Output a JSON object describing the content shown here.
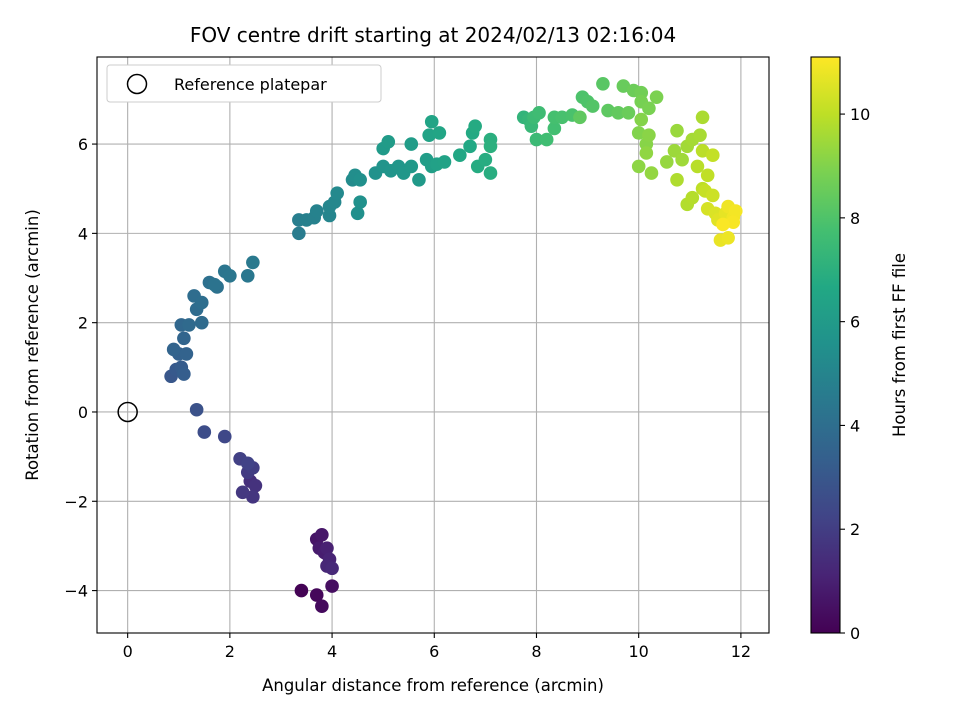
{
  "chart_data": {
    "type": "scatter",
    "title": "FOV centre drift starting at 2024/02/13 02:16:04",
    "xlabel": "Angular distance from reference (arcmin)",
    "ylabel": "Rotation from reference (arcmin)",
    "xlim": [
      -0.6,
      12.55
    ],
    "ylim": [
      -4.95,
      7.95
    ],
    "xticks": [
      0,
      2,
      4,
      6,
      8,
      10,
      12
    ],
    "yticks": [
      -4,
      -2,
      0,
      2,
      4,
      6
    ],
    "grid": true,
    "legend": {
      "position": "top-left",
      "entries": [
        {
          "label": "Reference platepar",
          "marker": "open-circle",
          "x": 0,
          "y": 0
        }
      ]
    },
    "colorbar": {
      "label": "Hours from first FF file",
      "colormap": "viridis",
      "range": [
        0,
        11.1
      ],
      "ticks": [
        0,
        2,
        4,
        6,
        8,
        10
      ]
    },
    "points": [
      [
        3.4,
        -4.0,
        0.05
      ],
      [
        3.7,
        -4.1,
        0.2
      ],
      [
        3.8,
        -4.35,
        0.3
      ],
      [
        4.0,
        -3.9,
        0.45
      ],
      [
        3.7,
        -2.85,
        0.6
      ],
      [
        3.8,
        -2.75,
        0.7
      ],
      [
        3.75,
        -3.05,
        0.8
      ],
      [
        3.85,
        -3.15,
        0.9
      ],
      [
        3.9,
        -3.05,
        1.0
      ],
      [
        3.95,
        -3.3,
        1.1
      ],
      [
        3.9,
        -3.45,
        1.2
      ],
      [
        4.0,
        -3.5,
        1.3
      ],
      [
        2.4,
        -1.55,
        1.5
      ],
      [
        2.5,
        -1.65,
        1.6
      ],
      [
        2.45,
        -1.9,
        1.7
      ],
      [
        2.25,
        -1.8,
        1.8
      ],
      [
        2.35,
        -1.35,
        1.9
      ],
      [
        2.45,
        -1.25,
        2.0
      ],
      [
        2.2,
        -1.05,
        2.1
      ],
      [
        2.35,
        -1.15,
        2.2
      ],
      [
        1.9,
        -0.55,
        2.4
      ],
      [
        1.5,
        -0.45,
        2.6
      ],
      [
        1.35,
        0.05,
        2.8
      ],
      [
        0.85,
        0.8,
        3.0
      ],
      [
        0.95,
        0.95,
        3.1
      ],
      [
        1.05,
        1.0,
        3.2
      ],
      [
        1.1,
        0.85,
        3.3
      ],
      [
        1.0,
        1.3,
        3.4
      ],
      [
        1.15,
        1.3,
        3.5
      ],
      [
        0.9,
        1.4,
        3.55
      ],
      [
        1.1,
        1.65,
        3.6
      ],
      [
        1.05,
        1.95,
        3.7
      ],
      [
        1.2,
        1.95,
        3.8
      ],
      [
        1.45,
        2.0,
        3.85
      ],
      [
        1.35,
        2.3,
        3.9
      ],
      [
        1.3,
        2.6,
        3.95
      ],
      [
        1.45,
        2.45,
        4.0
      ],
      [
        1.6,
        2.9,
        4.1
      ],
      [
        1.75,
        2.8,
        4.15
      ],
      [
        1.7,
        2.85,
        4.2
      ],
      [
        1.9,
        3.15,
        4.3
      ],
      [
        2.0,
        3.05,
        4.35
      ],
      [
        2.35,
        3.05,
        4.4
      ],
      [
        2.45,
        3.35,
        4.5
      ],
      [
        3.35,
        4.0,
        4.6
      ],
      [
        3.35,
        4.3,
        4.7
      ],
      [
        3.5,
        4.3,
        4.8
      ],
      [
        3.65,
        4.35,
        4.85
      ],
      [
        3.7,
        4.5,
        4.9
      ],
      [
        3.95,
        4.4,
        5.0
      ],
      [
        3.95,
        4.6,
        5.05
      ],
      [
        4.05,
        4.7,
        5.1
      ],
      [
        4.1,
        4.9,
        5.2
      ],
      [
        4.4,
        5.2,
        5.3
      ],
      [
        4.45,
        5.3,
        5.4
      ],
      [
        4.55,
        5.2,
        5.5
      ],
      [
        4.5,
        4.45,
        5.5
      ],
      [
        4.55,
        4.7,
        5.55
      ],
      [
        4.85,
        5.35,
        5.6
      ],
      [
        5.0,
        5.5,
        5.7
      ],
      [
        5.15,
        5.4,
        5.75
      ],
      [
        5.3,
        5.5,
        5.8
      ],
      [
        5.4,
        5.35,
        5.85
      ],
      [
        5.55,
        5.5,
        5.9
      ],
      [
        5.7,
        5.2,
        5.95
      ],
      [
        5.0,
        5.9,
        6.0
      ],
      [
        5.1,
        6.05,
        6.05
      ],
      [
        5.55,
        6.0,
        6.1
      ],
      [
        5.85,
        5.65,
        6.15
      ],
      [
        5.95,
        5.5,
        6.2
      ],
      [
        6.05,
        5.55,
        6.3
      ],
      [
        6.2,
        5.6,
        6.35
      ],
      [
        5.9,
        6.2,
        6.4
      ],
      [
        5.95,
        6.5,
        6.45
      ],
      [
        6.1,
        6.25,
        6.5
      ],
      [
        6.5,
        5.75,
        6.6
      ],
      [
        6.7,
        5.95,
        6.65
      ],
      [
        6.75,
        6.25,
        6.7
      ],
      [
        6.8,
        6.4,
        6.75
      ],
      [
        6.85,
        5.5,
        6.8
      ],
      [
        7.0,
        5.65,
        6.85
      ],
      [
        7.1,
        5.35,
        6.9
      ],
      [
        7.1,
        6.1,
        6.95
      ],
      [
        7.1,
        5.95,
        7.0
      ],
      [
        7.75,
        6.6,
        7.2
      ],
      [
        7.85,
        6.55,
        7.3
      ],
      [
        7.9,
        6.4,
        7.4
      ],
      [
        8.0,
        6.1,
        7.5
      ],
      [
        7.95,
        6.6,
        7.55
      ],
      [
        8.05,
        6.7,
        7.6
      ],
      [
        8.2,
        6.1,
        7.65
      ],
      [
        8.35,
        6.35,
        7.7
      ],
      [
        8.35,
        6.6,
        7.8
      ],
      [
        8.5,
        6.6,
        7.85
      ],
      [
        8.7,
        6.65,
        7.9
      ],
      [
        8.9,
        7.05,
        7.95
      ],
      [
        9.0,
        6.95,
        8.0
      ],
      [
        9.1,
        6.85,
        8.1
      ],
      [
        9.3,
        7.35,
        8.2
      ],
      [
        9.4,
        6.75,
        8.3
      ],
      [
        8.85,
        6.6,
        8.35
      ],
      [
        9.6,
        6.7,
        8.4
      ],
      [
        9.7,
        7.3,
        8.5
      ],
      [
        9.8,
        6.7,
        8.55
      ],
      [
        9.9,
        7.2,
        8.6
      ],
      [
        10.05,
        7.15,
        8.7
      ],
      [
        10.05,
        6.95,
        8.8
      ],
      [
        10.2,
        6.8,
        8.85
      ],
      [
        10.35,
        7.05,
        8.9
      ],
      [
        10.0,
        6.25,
        9.0
      ],
      [
        10.05,
        6.55,
        9.05
      ],
      [
        10.15,
        6.0,
        9.1
      ],
      [
        10.2,
        6.2,
        9.15
      ],
      [
        10.0,
        5.5,
        9.2
      ],
      [
        10.15,
        5.8,
        9.25
      ],
      [
        10.25,
        5.35,
        9.3
      ],
      [
        10.55,
        5.6,
        9.35
      ],
      [
        10.75,
        6.3,
        9.4
      ],
      [
        10.7,
        5.85,
        9.45
      ],
      [
        10.85,
        5.65,
        9.5
      ],
      [
        10.95,
        5.95,
        9.55
      ],
      [
        11.05,
        6.1,
        9.6
      ],
      [
        11.2,
        6.2,
        9.65
      ],
      [
        11.25,
        6.6,
        9.7
      ],
      [
        10.75,
        5.2,
        9.75
      ],
      [
        10.95,
        4.65,
        9.8
      ],
      [
        11.05,
        4.8,
        9.85
      ],
      [
        11.15,
        5.5,
        9.9
      ],
      [
        11.25,
        5.85,
        9.95
      ],
      [
        11.25,
        5.0,
        10.0
      ],
      [
        11.35,
        5.3,
        10.05
      ],
      [
        11.45,
        5.75,
        10.1
      ],
      [
        11.3,
        4.95,
        10.15
      ],
      [
        11.45,
        4.85,
        10.25
      ],
      [
        11.35,
        4.55,
        10.4
      ],
      [
        11.5,
        4.45,
        10.5
      ],
      [
        11.55,
        4.3,
        10.6
      ],
      [
        11.7,
        4.45,
        10.7
      ],
      [
        11.6,
        3.85,
        10.75
      ],
      [
        11.75,
        3.9,
        10.8
      ],
      [
        11.75,
        4.6,
        10.85
      ],
      [
        11.85,
        4.35,
        10.9
      ],
      [
        11.9,
        4.5,
        10.95
      ],
      [
        11.85,
        4.25,
        11.0
      ],
      [
        11.65,
        4.2,
        11.05
      ]
    ]
  }
}
